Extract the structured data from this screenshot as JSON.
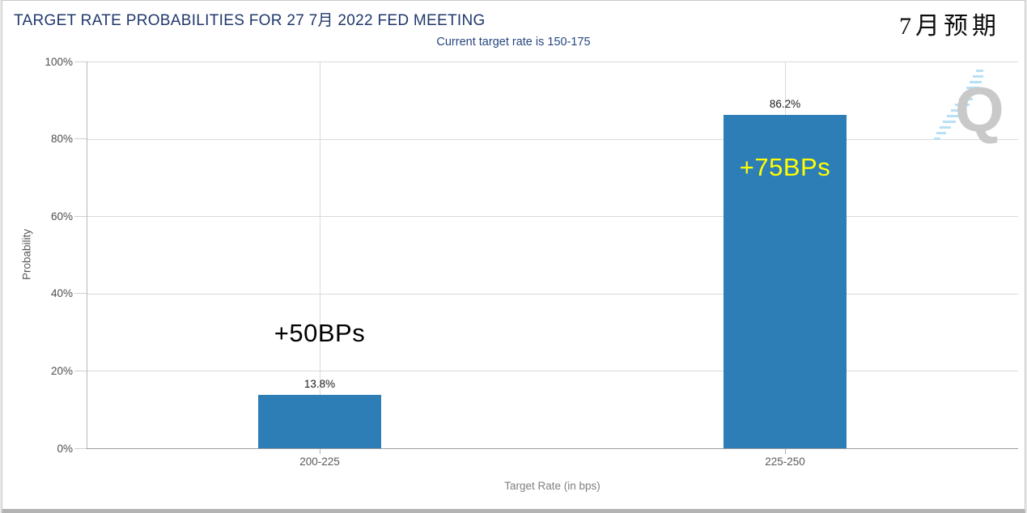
{
  "header": {
    "title": "TARGET RATE PROBABILITIES FOR 27 7月 2022 FED MEETING",
    "corner_note": "7月预期"
  },
  "chart_data": {
    "type": "bar",
    "title": "TARGET RATE PROBABILITIES FOR 27 7月 2022 FED MEETING",
    "subtitle": "Current target rate is 150-175",
    "xlabel": "Target Rate (in bps)",
    "ylabel": "Probability",
    "categories": [
      "200-225",
      "225-250"
    ],
    "values": [
      13.8,
      86.2
    ],
    "value_labels": [
      "13.8%",
      "86.2%"
    ],
    "bar_annotations": [
      "+50BPs",
      "+75BPs"
    ],
    "annotation_colors": [
      "#000000",
      "#ffff00"
    ],
    "yticks": [
      "100%",
      "80%",
      "60%",
      "40%",
      "20%",
      "0%"
    ],
    "ylim": [
      0,
      100
    ],
    "grid": true,
    "legend_position": "none",
    "bar_color": "#2d7eb7"
  },
  "watermark": {
    "letter": "Q"
  },
  "colors": {
    "title_navy": "#21386b",
    "subtitle_navy": "#27477e",
    "bar_blue": "#2d7eb7",
    "annotation_yellow": "#ffff00",
    "gridline": "#d9d9d9"
  }
}
